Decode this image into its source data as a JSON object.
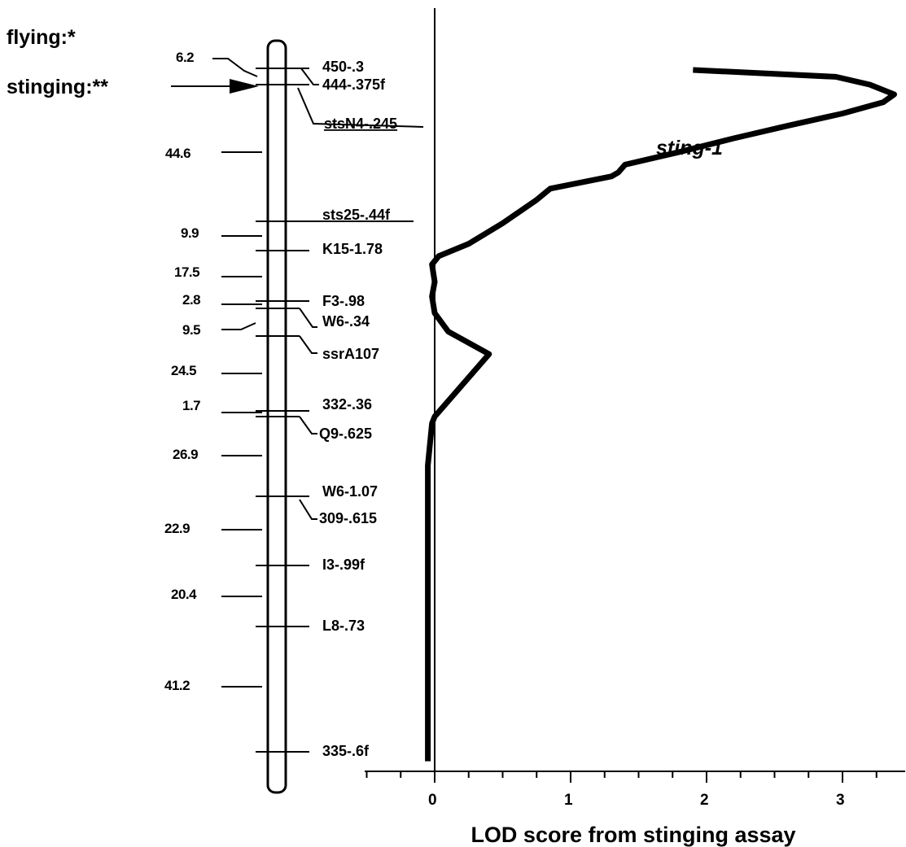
{
  "trait_labels": {
    "flying": "flying:*",
    "stinging": "stinging:**"
  },
  "distances": [
    "6.2",
    "44.6",
    "9.9",
    "17.5",
    "2.8",
    "9.5",
    "24.5",
    "1.7",
    "26.9",
    "22.9",
    "20.4",
    "41.2"
  ],
  "markers": [
    {
      "name": "450-.3",
      "underlined": false
    },
    {
      "name": "444-.375f",
      "underlined": false
    },
    {
      "name": "stsN4-.245",
      "underlined": true
    },
    {
      "name": "sts25-.44f",
      "underlined": true
    },
    {
      "name": "K15-1.78",
      "underlined": false
    },
    {
      "name": "F3-.98",
      "underlined": false
    },
    {
      "name": "W6-.34",
      "underlined": false
    },
    {
      "name": "ssrA107",
      "underlined": false
    },
    {
      "name": "332-.36",
      "underlined": false
    },
    {
      "name": "Q9-.625",
      "underlined": false
    },
    {
      "name": "W6-1.07",
      "underlined": false
    },
    {
      "name": "309-.615",
      "underlined": false
    },
    {
      "name": "I3-.99f",
      "underlined": false
    },
    {
      "name": "L8-.73",
      "underlined": false
    },
    {
      "name": "335-.6f",
      "underlined": false
    }
  ],
  "chart_data": {
    "type": "line",
    "title": "",
    "xlabel": "LOD score from stinging assay",
    "ylabel": "",
    "xlim": [
      -0.5,
      3.5
    ],
    "x_ticks": [
      0,
      1,
      2,
      3
    ],
    "x_tick_labels": [
      "0",
      "1",
      "2",
      "3"
    ],
    "grid": false,
    "legend": "none",
    "series": [
      {
        "name": "sting-1",
        "points": [
          [
            1.9,
            0.0
          ],
          [
            2.95,
            7.0
          ],
          [
            3.2,
            15.0
          ],
          [
            3.38,
            25.0
          ],
          [
            3.3,
            33.0
          ],
          [
            3.0,
            44.6
          ],
          [
            2.6,
            57.0
          ],
          [
            2.2,
            70.0
          ],
          [
            1.8,
            84.0
          ],
          [
            1.4,
            97.0
          ],
          [
            1.35,
            105.0
          ],
          [
            1.3,
            109.0
          ],
          [
            0.85,
            121.5
          ],
          [
            0.75,
            133.0
          ],
          [
            0.5,
            157.0
          ],
          [
            0.25,
            178.0
          ],
          [
            0.03,
            190.6
          ],
          [
            -0.02,
            199.2
          ],
          [
            0.0,
            217.0
          ],
          [
            -0.02,
            232.0
          ],
          [
            0.0,
            249.0
          ],
          [
            0.1,
            268.0
          ],
          [
            0.4,
            291.0
          ],
          [
            0.1,
            339.0
          ],
          [
            0.0,
            355.0
          ],
          [
            -0.02,
            362.0
          ],
          [
            -0.05,
            405.0
          ],
          [
            -0.05,
            500.0
          ],
          [
            -0.05,
            600.0
          ],
          [
            -0.05,
            708.0
          ]
        ]
      }
    ]
  }
}
